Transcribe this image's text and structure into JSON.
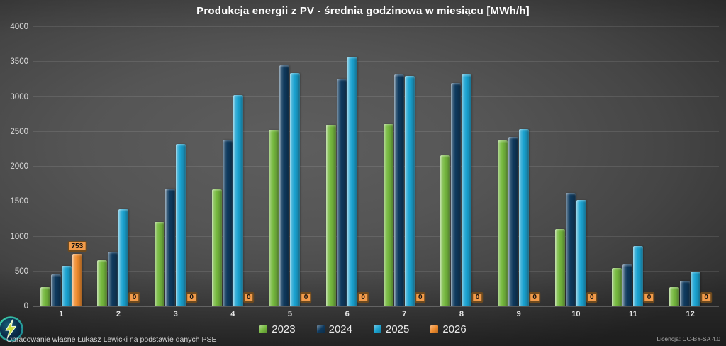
{
  "title": "Produkcja energii z PV - średnia godzinowa w miesiącu [MWh/h]",
  "chart_data": {
    "type": "bar",
    "title": "Produkcja energii z PV - średnia godzinowa w miesiącu [MWh/h]",
    "xlabel": "",
    "ylabel": "",
    "categories": [
      "1",
      "2",
      "3",
      "4",
      "5",
      "6",
      "7",
      "8",
      "9",
      "10",
      "11",
      "12"
    ],
    "series": [
      {
        "name": "2023",
        "color": "#76b93f",
        "values": [
          270,
          660,
          1210,
          1680,
          2530,
          2600,
          2610,
          2160,
          2380,
          1110,
          550,
          270
        ]
      },
      {
        "name": "2024",
        "color": "#0f3a5e",
        "values": [
          460,
          780,
          1690,
          2390,
          3450,
          3260,
          3320,
          3200,
          2430,
          1620,
          600,
          370
        ]
      },
      {
        "name": "2025",
        "color": "#1ba3d1",
        "values": [
          575,
          1390,
          2330,
          3030,
          3340,
          3570,
          3300,
          3320,
          2540,
          1520,
          860,
          500
        ]
      },
      {
        "name": "2026",
        "color": "#ef8b2d",
        "values": [
          753,
          0,
          0,
          0,
          0,
          0,
          0,
          0,
          0,
          0,
          0,
          0
        ],
        "data_labels": true
      }
    ],
    "ylim": [
      0,
      4000
    ],
    "yticks": [
      0,
      500,
      1000,
      1500,
      2000,
      2500,
      3000,
      3500,
      4000
    ],
    "grid": true,
    "legend_position": "bottom",
    "data_label_box_color": "#f29b4a"
  },
  "footer": {
    "attribution": "Opracowanie własne Łukasz Lewicki na podstawie danych PSE",
    "license": "Licencja: CC-BY-SA 4.0",
    "logo_icon": "lightning-bolt-icon"
  }
}
